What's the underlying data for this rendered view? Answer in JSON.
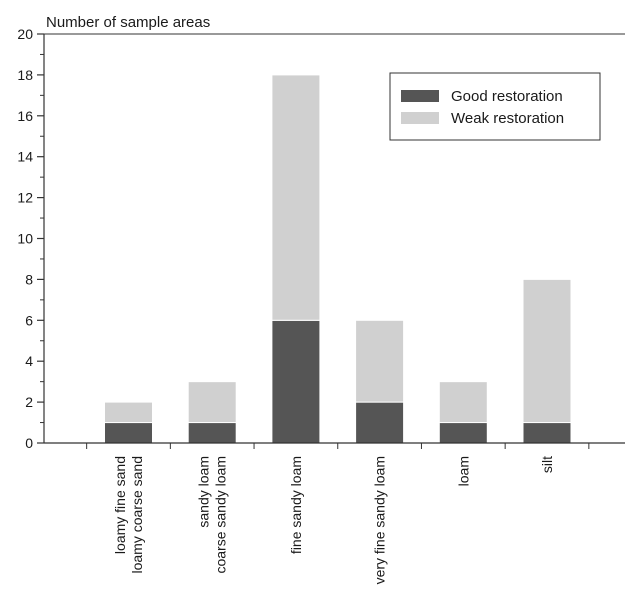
{
  "chart_data": {
    "type": "bar",
    "stacked": true,
    "title": "",
    "xlabel": "",
    "ylabel": "Number of sample areas",
    "ylim": [
      0,
      20
    ],
    "yticks": [
      "0",
      "2",
      "4",
      "6",
      "8",
      "10",
      "12",
      "14",
      "16",
      "18",
      "20"
    ],
    "grid": false,
    "legend_position": "top-right",
    "categories": [
      [
        "loamy fine sand",
        "loamy coarse sand"
      ],
      [
        "sandy loam",
        "coarse sandy loam"
      ],
      [
        "fine sandy loam"
      ],
      [
        "very fine sandy loam"
      ],
      [
        "loam"
      ],
      [
        "silt"
      ]
    ],
    "series": [
      {
        "name": "Good restoration",
        "color": "#555555",
        "values": [
          1,
          1,
          6,
          2,
          1,
          1
        ]
      },
      {
        "name": "Weak restoration",
        "color": "#d0d0d0",
        "values": [
          1,
          2,
          12,
          4,
          2,
          7
        ]
      }
    ]
  }
}
